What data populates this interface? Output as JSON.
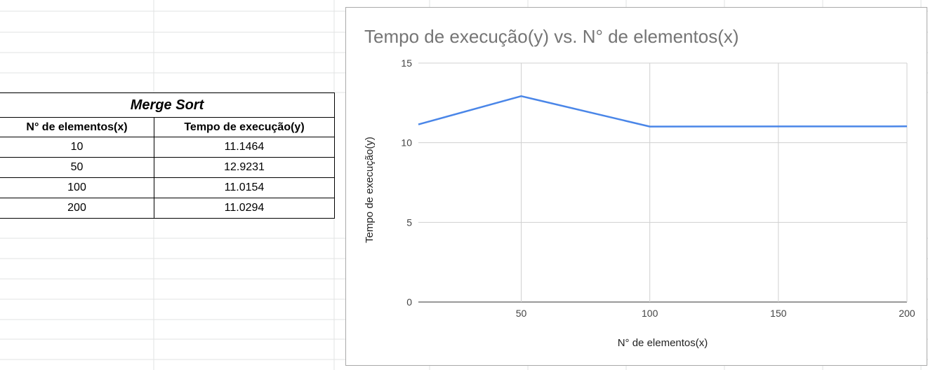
{
  "table": {
    "title": "Merge Sort",
    "headers": [
      "N° de elementos(x)",
      "Tempo de execução(y)"
    ],
    "rows": [
      [
        "10",
        "11.1464"
      ],
      [
        "50",
        "12.9231"
      ],
      [
        "100",
        "11.0154"
      ],
      [
        "200",
        "11.0294"
      ]
    ]
  },
  "chart_data": {
    "type": "line",
    "title": "Tempo de execução(y) vs. N° de elementos(x)",
    "xlabel": "N° de elementos(x)",
    "ylabel": "Tempo de execução(y)",
    "x": [
      10,
      50,
      100,
      200
    ],
    "series": [
      {
        "values": [
          11.1464,
          12.9231,
          11.0154,
          11.0294
        ],
        "color": "#4a86e8"
      }
    ],
    "xlim": [
      10,
      200
    ],
    "ylim": [
      0,
      15
    ],
    "xticks": [
      50,
      100,
      150,
      200
    ],
    "yticks": [
      0,
      5,
      10,
      15
    ],
    "grid": true,
    "legend": "none"
  }
}
